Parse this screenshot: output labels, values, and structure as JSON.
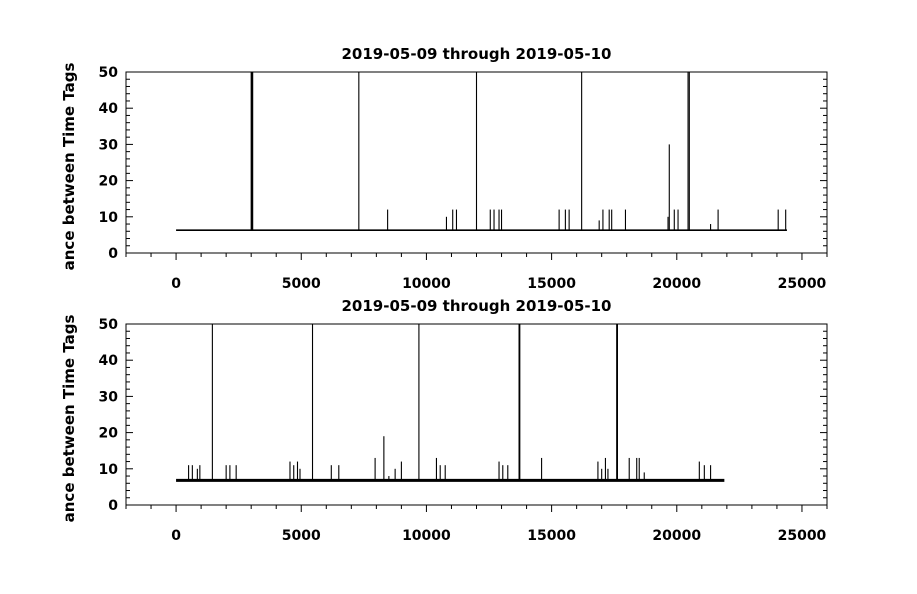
{
  "chart_data": [
    {
      "type": "line",
      "title": "2019-05-09 through 2019-05-10",
      "ylabel": "ance between Time Tags",
      "xlabel": "",
      "xlim": [
        -2000,
        26000
      ],
      "ylim": [
        0,
        50
      ],
      "xticks": [
        0,
        5000,
        10000,
        15000,
        20000,
        25000
      ],
      "yticks": [
        0,
        10,
        20,
        30,
        40,
        50
      ],
      "grid": false,
      "x_range": [
        0,
        24400
      ],
      "baseline": 6.3,
      "spikes": [
        {
          "x": 3000,
          "y": 50
        },
        {
          "x": 3030,
          "y": 50
        },
        {
          "x": 3060,
          "y": 50
        },
        {
          "x": 7300,
          "y": 50
        },
        {
          "x": 8450,
          "y": 12
        },
        {
          "x": 10800,
          "y": 10
        },
        {
          "x": 11050,
          "y": 12
        },
        {
          "x": 11200,
          "y": 12
        },
        {
          "x": 12000,
          "y": 50
        },
        {
          "x": 12550,
          "y": 12
        },
        {
          "x": 12700,
          "y": 12
        },
        {
          "x": 12900,
          "y": 12
        },
        {
          "x": 13000,
          "y": 12
        },
        {
          "x": 15300,
          "y": 12
        },
        {
          "x": 15550,
          "y": 12
        },
        {
          "x": 15700,
          "y": 12
        },
        {
          "x": 16200,
          "y": 50
        },
        {
          "x": 16900,
          "y": 9
        },
        {
          "x": 17050,
          "y": 12
        },
        {
          "x": 17300,
          "y": 12
        },
        {
          "x": 17400,
          "y": 12
        },
        {
          "x": 17950,
          "y": 12
        },
        {
          "x": 19700,
          "y": 30
        },
        {
          "x": 19650,
          "y": 10
        },
        {
          "x": 19900,
          "y": 12
        },
        {
          "x": 20050,
          "y": 12
        },
        {
          "x": 20450,
          "y": 50
        },
        {
          "x": 20500,
          "y": 50
        },
        {
          "x": 21350,
          "y": 8
        },
        {
          "x": 21650,
          "y": 12
        },
        {
          "x": 24050,
          "y": 12
        },
        {
          "x": 24350,
          "y": 12
        }
      ]
    },
    {
      "type": "line",
      "title": "2019-05-09 through 2019-05-10",
      "ylabel": "ance between Time Tags",
      "xlabel": "",
      "xlim": [
        -2000,
        26000
      ],
      "ylim": [
        0,
        50
      ],
      "xticks": [
        0,
        5000,
        10000,
        15000,
        20000,
        25000
      ],
      "yticks": [
        0,
        10,
        20,
        30,
        40,
        50
      ],
      "grid": false,
      "x_range": [
        0,
        21900
      ],
      "baseline": 6.8,
      "spikes": [
        {
          "x": 500,
          "y": 11
        },
        {
          "x": 650,
          "y": 11
        },
        {
          "x": 850,
          "y": 10
        },
        {
          "x": 950,
          "y": 11
        },
        {
          "x": 1450,
          "y": 50
        },
        {
          "x": 2000,
          "y": 11
        },
        {
          "x": 2150,
          "y": 11
        },
        {
          "x": 2400,
          "y": 11
        },
        {
          "x": 4550,
          "y": 12
        },
        {
          "x": 4700,
          "y": 11
        },
        {
          "x": 4850,
          "y": 12
        },
        {
          "x": 4950,
          "y": 10
        },
        {
          "x": 5450,
          "y": 50
        },
        {
          "x": 6200,
          "y": 11
        },
        {
          "x": 6500,
          "y": 11
        },
        {
          "x": 7950,
          "y": 13
        },
        {
          "x": 8300,
          "y": 19
        },
        {
          "x": 8500,
          "y": 8
        },
        {
          "x": 8750,
          "y": 10
        },
        {
          "x": 9000,
          "y": 12
        },
        {
          "x": 9700,
          "y": 50
        },
        {
          "x": 10400,
          "y": 13
        },
        {
          "x": 10550,
          "y": 11
        },
        {
          "x": 10750,
          "y": 11
        },
        {
          "x": 12900,
          "y": 12
        },
        {
          "x": 13050,
          "y": 11
        },
        {
          "x": 13250,
          "y": 11
        },
        {
          "x": 13700,
          "y": 50
        },
        {
          "x": 13730,
          "y": 50
        },
        {
          "x": 14600,
          "y": 13
        },
        {
          "x": 16850,
          "y": 12
        },
        {
          "x": 17000,
          "y": 10
        },
        {
          "x": 17150,
          "y": 13
        },
        {
          "x": 17250,
          "y": 10
        },
        {
          "x": 17600,
          "y": 50
        },
        {
          "x": 17630,
          "y": 50
        },
        {
          "x": 18100,
          "y": 13
        },
        {
          "x": 18400,
          "y": 13
        },
        {
          "x": 18500,
          "y": 13
        },
        {
          "x": 18700,
          "y": 9
        },
        {
          "x": 20900,
          "y": 12
        },
        {
          "x": 21100,
          "y": 11
        },
        {
          "x": 21350,
          "y": 11
        }
      ]
    }
  ]
}
